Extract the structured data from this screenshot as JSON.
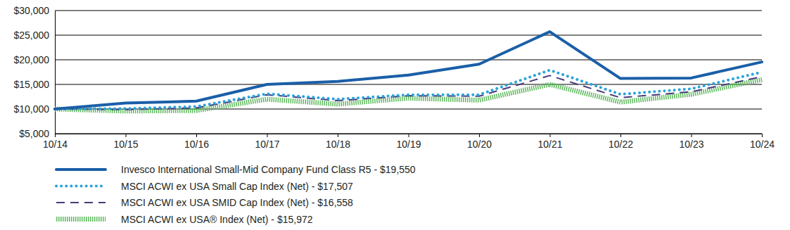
{
  "chart_data": {
    "type": "line",
    "categories": [
      "10/14",
      "10/15",
      "10/16",
      "10/17",
      "10/18",
      "10/19",
      "10/20",
      "10/21",
      "10/22",
      "10/23",
      "10/24"
    ],
    "series": [
      {
        "name": "Invesco International Small-Mid Company Fund Class R5 - $19,550",
        "color": "#1a5fa8",
        "line_style": "solid",
        "values": [
          10000,
          11200,
          11600,
          15000,
          15600,
          16900,
          19100,
          25700,
          16200,
          16300,
          19550
        ]
      },
      {
        "name": "MSCI ACWI ex USA Small Cap Index (Net) - $17,507",
        "color": "#2aa4dc",
        "line_style": "dotted",
        "values": [
          10000,
          10100,
          10500,
          13100,
          12000,
          12900,
          12900,
          17900,
          13000,
          14100,
          17507
        ]
      },
      {
        "name": "MSCI ACWI ex USA SMID Cap Index (Net) - $16,558",
        "color": "#4a3a7c",
        "line_style": "dashed",
        "values": [
          10000,
          9900,
          10200,
          12900,
          11700,
          12700,
          12600,
          16800,
          12300,
          13500,
          16558
        ]
      },
      {
        "name": "MSCI ACWI ex USA® Index (Net) - $15,972",
        "color": "#5cb85c",
        "line_style": "hatched",
        "values": [
          10000,
          9600,
          9700,
          12000,
          11000,
          12200,
          11800,
          15000,
          11400,
          13000,
          15972
        ]
      }
    ],
    "ylim": [
      5000,
      30000
    ],
    "yticks": [
      {
        "value": 5000,
        "label": "$5,000"
      },
      {
        "value": 10000,
        "label": "$10,000"
      },
      {
        "value": 15000,
        "label": "$15,000"
      },
      {
        "value": 20000,
        "label": "$20,000"
      },
      {
        "value": 25000,
        "label": "$25,000"
      },
      {
        "value": 30000,
        "label": "$30,000"
      }
    ],
    "grid": true,
    "legend": "bottom"
  }
}
